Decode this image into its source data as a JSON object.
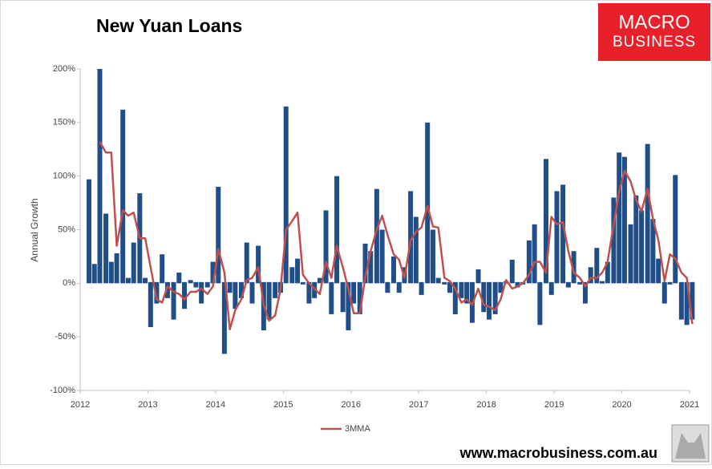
{
  "chart_data": {
    "type": "bar",
    "title": "New Yuan Loans",
    "y_label": "Annual Growth",
    "x": [
      2012.13,
      2012.21,
      2012.29,
      2012.38,
      2012.46,
      2012.54,
      2012.63,
      2012.71,
      2012.79,
      2012.88,
      2012.96,
      2013.04,
      2013.13,
      2013.21,
      2013.29,
      2013.38,
      2013.46,
      2013.54,
      2013.63,
      2013.71,
      2013.79,
      2013.88,
      2013.96,
      2014.04,
      2014.13,
      2014.21,
      2014.29,
      2014.38,
      2014.46,
      2014.54,
      2014.63,
      2014.71,
      2014.79,
      2014.88,
      2014.96,
      2015.04,
      2015.13,
      2015.21,
      2015.29,
      2015.38,
      2015.46,
      2015.54,
      2015.63,
      2015.71,
      2015.79,
      2015.88,
      2015.96,
      2016.04,
      2016.13,
      2016.21,
      2016.29,
      2016.38,
      2016.46,
      2016.54,
      2016.63,
      2016.71,
      2016.79,
      2016.88,
      2016.96,
      2017.04,
      2017.13,
      2017.21,
      2017.29,
      2017.38,
      2017.46,
      2017.54,
      2017.63,
      2017.71,
      2017.79,
      2017.88,
      2017.96,
      2018.04,
      2018.13,
      2018.21,
      2018.29,
      2018.38,
      2018.46,
      2018.54,
      2018.63,
      2018.71,
      2018.79,
      2018.88,
      2018.96,
      2019.04,
      2019.13,
      2019.21,
      2019.29,
      2019.38,
      2019.46,
      2019.54,
      2019.63,
      2019.71,
      2019.79,
      2019.88,
      2019.96,
      2020.04,
      2020.13,
      2020.21,
      2020.29,
      2020.38,
      2020.46,
      2020.54,
      2020.63,
      2020.71,
      2020.79,
      2020.88,
      2020.96,
      2021.04
    ],
    "series": [
      {
        "type": "bar",
        "color": "#1f4e89",
        "values": [
          97,
          18,
          200,
          65,
          20,
          28,
          162,
          5,
          38,
          84,
          5,
          -42,
          -20,
          27,
          -15,
          -35,
          10,
          -25,
          3,
          -5,
          -20,
          -5,
          20,
          90,
          -67,
          -10,
          -25,
          -15,
          38,
          -20,
          35,
          -45,
          -35,
          -15,
          -10,
          165,
          15,
          23,
          0,
          -20,
          -15,
          5,
          68,
          -30,
          100,
          -28,
          -45,
          -20,
          -30,
          37,
          30,
          88,
          50,
          -10,
          25,
          -10,
          15,
          86,
          62,
          -12,
          150,
          50,
          5,
          0,
          -10,
          -30,
          -15,
          -20,
          -38,
          13,
          -28,
          -35,
          -30,
          -10,
          2,
          22,
          -5,
          0,
          40,
          55,
          -40,
          116,
          -12,
          86,
          92,
          -5,
          30,
          0,
          -20,
          15,
          33,
          2,
          20,
          80,
          122,
          118,
          55,
          82,
          68,
          130,
          60,
          23,
          -20,
          0,
          101,
          -35,
          -40,
          -35
        ]
      },
      {
        "type": "line",
        "name": "3MMA",
        "color": "#c0504d",
        "values": [
          null,
          null,
          132,
          122,
          122,
          35,
          68,
          63,
          66,
          42,
          42,
          15,
          -15,
          -18,
          -3,
          -8,
          -10,
          -15,
          -8,
          -8,
          -5,
          -10,
          -3,
          32,
          10,
          -43,
          -25,
          -15,
          3,
          5,
          15,
          -20,
          -35,
          -30,
          -5,
          50,
          58,
          66,
          8,
          0,
          -5,
          -10,
          20,
          5,
          35,
          15,
          -5,
          -28,
          -28,
          5,
          30,
          50,
          63,
          45,
          27,
          22,
          5,
          40,
          48,
          52,
          72,
          53,
          52,
          5,
          2,
          -5,
          -18,
          -15,
          -20,
          -5,
          -20,
          -22,
          -25,
          -15,
          3,
          -5,
          -3,
          0,
          8,
          20,
          20,
          10,
          62,
          55,
          57,
          30,
          10,
          5,
          -3,
          5,
          5,
          10,
          20,
          55,
          85,
          105,
          95,
          78,
          67,
          88,
          60,
          40,
          2,
          27,
          23,
          10,
          5,
          -38
        ]
      }
    ],
    "xlim": [
      2012,
      2021
    ],
    "xticks": [
      2012,
      2013,
      2014,
      2015,
      2016,
      2017,
      2018,
      2019,
      2020,
      2021
    ],
    "ylim": [
      -100,
      200
    ],
    "yticks": [
      {
        "value": -100,
        "label": "-100%"
      },
      {
        "value": -50,
        "label": "-50%"
      },
      {
        "value": 0,
        "label": "0%"
      },
      {
        "value": 50,
        "label": "50%"
      },
      {
        "value": 100,
        "label": "100%"
      },
      {
        "value": 150,
        "label": "150%"
      },
      {
        "value": 200,
        "label": "200%"
      }
    ],
    "grid": false,
    "legend": "bottom"
  },
  "logo": [
    "MACRO",
    "BUSINESS"
  ],
  "footer": "www.macrobusiness.com.au"
}
